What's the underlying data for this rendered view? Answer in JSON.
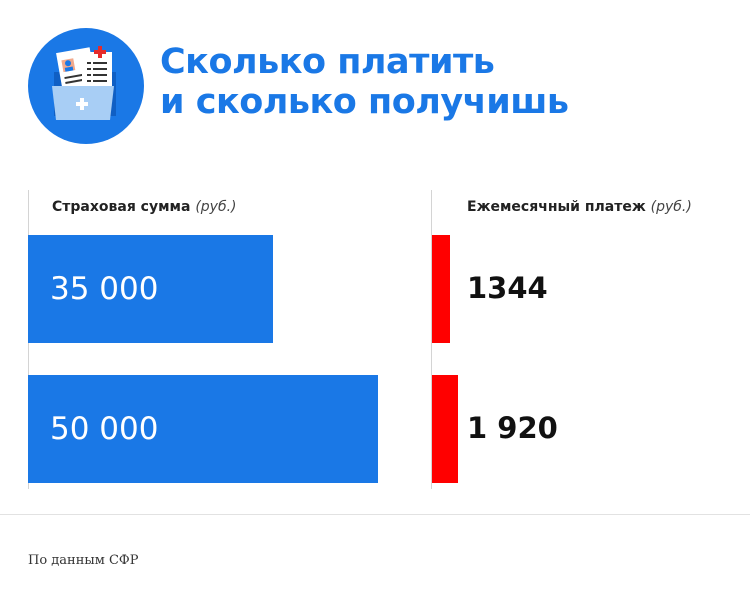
{
  "title_lines": [
    "Сколько платить",
    "и сколько получишь"
  ],
  "icon": "medical-folder-icon",
  "colors": {
    "accent": "#1a78e6",
    "payment": "#ff0000"
  },
  "chart_data": {
    "type": "bar",
    "categories": [
      "35 000",
      "50 000"
    ],
    "series": [
      {
        "header": "Страховая сумма",
        "unit": "(руб.)",
        "values": [
          35000,
          50000
        ],
        "labels": [
          "35 000",
          "50 000"
        ]
      },
      {
        "header": "Ежемесячный платеж",
        "unit": "(руб.)",
        "values": [
          1344,
          1920
        ],
        "labels": [
          "1344",
          "1 920"
        ]
      }
    ],
    "orientation": "horizontal"
  },
  "source": "По данным СФР"
}
